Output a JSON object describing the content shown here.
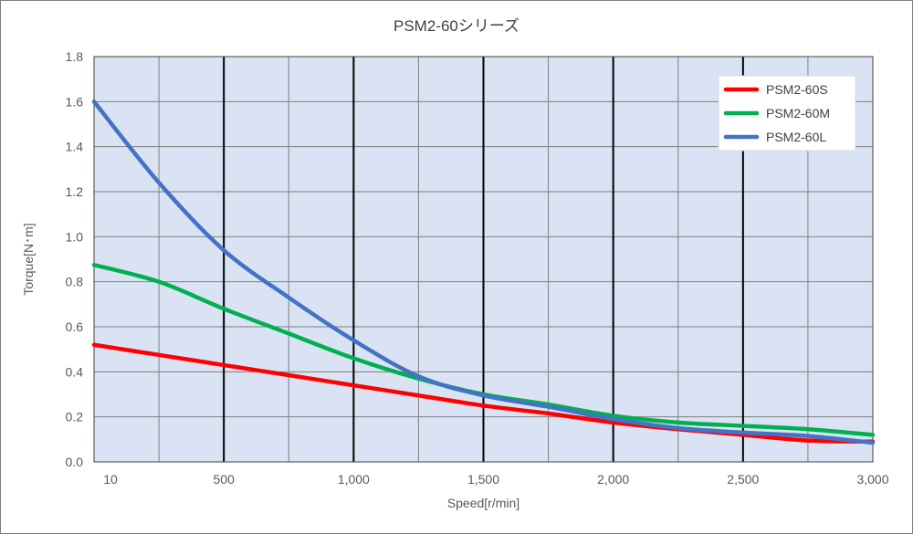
{
  "chart_data": {
    "type": "line",
    "title": "PSM2-60シリーズ",
    "xlabel": "Speed[r/min]",
    "ylabel": "Torque[N･m]",
    "xlim": [
      0,
      3000
    ],
    "ylim": [
      0,
      1.8
    ],
    "x_ticks": [
      {
        "value": 10,
        "label": "10"
      },
      {
        "value": 500,
        "label": "500"
      },
      {
        "value": 1000,
        "label": "1,000"
      },
      {
        "value": 1500,
        "label": "1,500"
      },
      {
        "value": 2000,
        "label": "2,000"
      },
      {
        "value": 2500,
        "label": "2,500"
      },
      {
        "value": 3000,
        "label": "3,000"
      }
    ],
    "y_ticks": [
      {
        "value": 0.0,
        "label": "0.0"
      },
      {
        "value": 0.2,
        "label": "0.2"
      },
      {
        "value": 0.4,
        "label": "0.4"
      },
      {
        "value": 0.6,
        "label": "0.6"
      },
      {
        "value": 0.8,
        "label": "0.8"
      },
      {
        "value": 1.0,
        "label": "1.0"
      },
      {
        "value": 1.2,
        "label": "1.2"
      },
      {
        "value": 1.4,
        "label": "1.4"
      },
      {
        "value": 1.6,
        "label": "1.6"
      },
      {
        "value": 1.8,
        "label": "1.8"
      }
    ],
    "x_minor_grid_step": 250,
    "x_major_grid_step": 500,
    "y_grid_step": 0.2,
    "grid": true,
    "legend_position": "top-right",
    "plot_background": "#dae3f3",
    "series": [
      {
        "name": "PSM2-60S",
        "color": "#ff0000",
        "x": [
          0,
          250,
          500,
          750,
          1000,
          1250,
          1500,
          1750,
          2000,
          2250,
          2500,
          2750,
          3000
        ],
        "y": [
          0.52,
          0.475,
          0.43,
          0.385,
          0.34,
          0.295,
          0.25,
          0.215,
          0.175,
          0.145,
          0.12,
          0.095,
          0.09
        ]
      },
      {
        "name": "PSM2-60M",
        "color": "#00b050",
        "x": [
          0,
          250,
          500,
          750,
          1000,
          1250,
          1500,
          1750,
          2000,
          2250,
          2500,
          2750,
          3000
        ],
        "y": [
          0.875,
          0.8,
          0.68,
          0.57,
          0.46,
          0.37,
          0.3,
          0.255,
          0.205,
          0.175,
          0.16,
          0.145,
          0.12
        ]
      },
      {
        "name": "PSM2-60L",
        "color": "#4472c4",
        "x": [
          0,
          250,
          500,
          750,
          1000,
          1250,
          1500,
          1750,
          2000,
          2250,
          2500,
          2750,
          3000
        ],
        "y": [
          1.6,
          1.24,
          0.94,
          0.73,
          0.54,
          0.38,
          0.295,
          0.245,
          0.19,
          0.15,
          0.13,
          0.115,
          0.085
        ]
      }
    ]
  }
}
